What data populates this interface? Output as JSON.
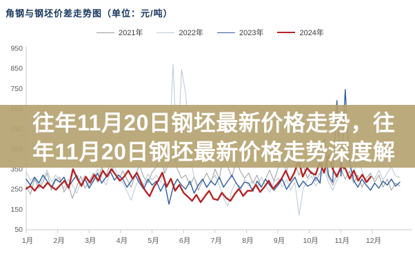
{
  "overlay": {
    "line1": "往年11月20日钢坯最新价格走势，往",
    "line2": "年11月20日钢坯最新价格走势深度解",
    "background": "#b4a26f",
    "text_color": "#ffffff"
  },
  "chart_data": {
    "type": "line",
    "title": "角钢与钢坯价差走势图（单位：元/吨）",
    "title_color": "#17375e",
    "xlabel": "",
    "ylabel": "",
    "ylim": [
      50,
      950
    ],
    "y_ticks": [
      950,
      850,
      750,
      650,
      550,
      450,
      350,
      250,
      150,
      50
    ],
    "x_ticks": [
      "1月",
      "2月",
      "3月",
      "4月",
      "5月",
      "6月",
      "7月",
      "8月",
      "9月",
      "10月",
      "11月",
      "12月"
    ],
    "grid": false,
    "legend_position": "top",
    "axis_color": "#c9c9c9",
    "series": [
      {
        "name": "2021年",
        "color": "#9b9b9b",
        "width": 1,
        "end_frac": 1.0,
        "values": [
          265,
          225,
          300,
          255,
          285,
          330,
          245,
          295,
          310,
          235,
          275,
          205,
          260,
          315,
          255,
          290,
          330,
          285,
          360,
          310,
          380,
          335,
          295,
          340,
          300,
          260,
          320,
          370,
          310,
          280,
          335,
          360,
          410,
          330,
          380,
          430,
          350,
          305,
          320,
          270,
          310,
          245,
          290,
          330,
          285,
          350,
          300,
          420,
          360,
          310,
          390,
          340,
          305,
          330,
          280,
          320,
          260,
          300,
          345,
          290,
          355,
          400,
          330,
          450,
          380,
          320,
          365,
          305,
          340,
          290,
          330,
          385,
          310,
          270,
          325,
          350,
          300,
          340,
          280,
          320,
          260,
          305,
          330,
          285,
          320,
          260,
          300,
          245,
          280,
          265
        ]
      },
      {
        "name": "2022年",
        "color": "#b9c6d5",
        "width": 1,
        "end_frac": 1.0,
        "values": [
          335,
          295,
          310,
          265,
          300,
          345,
          285,
          320,
          295,
          255,
          300,
          270,
          230,
          285,
          320,
          265,
          300,
          350,
          310,
          270,
          330,
          365,
          305,
          280,
          240,
          195,
          260,
          310,
          270,
          325,
          295,
          320,
          285,
          350,
          420,
          870,
          390,
          845,
          725,
          420,
          310,
          265,
          300,
          255,
          295,
          320,
          270,
          205,
          165,
          245,
          285,
          235,
          300,
          265,
          290,
          250,
          310,
          270,
          235,
          285,
          305,
          260,
          300,
          245,
          285,
          120,
          255,
          295,
          315,
          265,
          300,
          350,
          285,
          245,
          295,
          325,
          365,
          420,
          305,
          450,
          340,
          285,
          325,
          300,
          345,
          295,
          330,
          360,
          315,
          310
        ]
      },
      {
        "name": "2023年",
        "color": "#2e5c9e",
        "width": 1.4,
        "end_frac": 1.0,
        "values": [
          300,
          270,
          310,
          280,
          320,
          290,
          260,
          300,
          285,
          310,
          260,
          290,
          320,
          270,
          300,
          255,
          290,
          330,
          280,
          310,
          340,
          295,
          320,
          300,
          260,
          290,
          320,
          280,
          250,
          300,
          270,
          290,
          240,
          280,
          175,
          260,
          300,
          270,
          250,
          290,
          230,
          270,
          300,
          260,
          290,
          270,
          310,
          260,
          290,
          320,
          280,
          255,
          285,
          280,
          240,
          290,
          260,
          300,
          270,
          245,
          270,
          300,
          250,
          280,
          310,
          260,
          290,
          265,
          275,
          310,
          280,
          500,
          320,
          285,
          690,
          315,
          745,
          380,
          295,
          260,
          300,
          270,
          245,
          280,
          255,
          290,
          270,
          300,
          265,
          285
        ]
      },
      {
        "name": "2024年",
        "color": "#b42426",
        "width": 2.4,
        "end_frac": 0.9225,
        "values": [
          252,
          266,
          242,
          271,
          255,
          282,
          262,
          247,
          270,
          292,
          256,
          350,
          302,
          266,
          312,
          282,
          322,
          292,
          342,
          312,
          350,
          322,
          292,
          312,
          342,
          302,
          332,
          282,
          242,
          215,
          262,
          292,
          332,
          262,
          302,
          242,
          272,
          232,
          212,
          192,
          222,
          185,
          215,
          242,
          202,
          196,
          232,
          206,
          192,
          226,
          252,
          216,
          242,
          242,
          272,
          236,
          262,
          292,
          252,
          276,
          302,
          342,
          292,
          332,
          392,
          312,
          356,
          330,
          322,
          382,
          332,
          420,
          352,
          312,
          362,
          352,
          302,
          342,
          292,
          322,
          285,
          312
        ]
      }
    ]
  }
}
